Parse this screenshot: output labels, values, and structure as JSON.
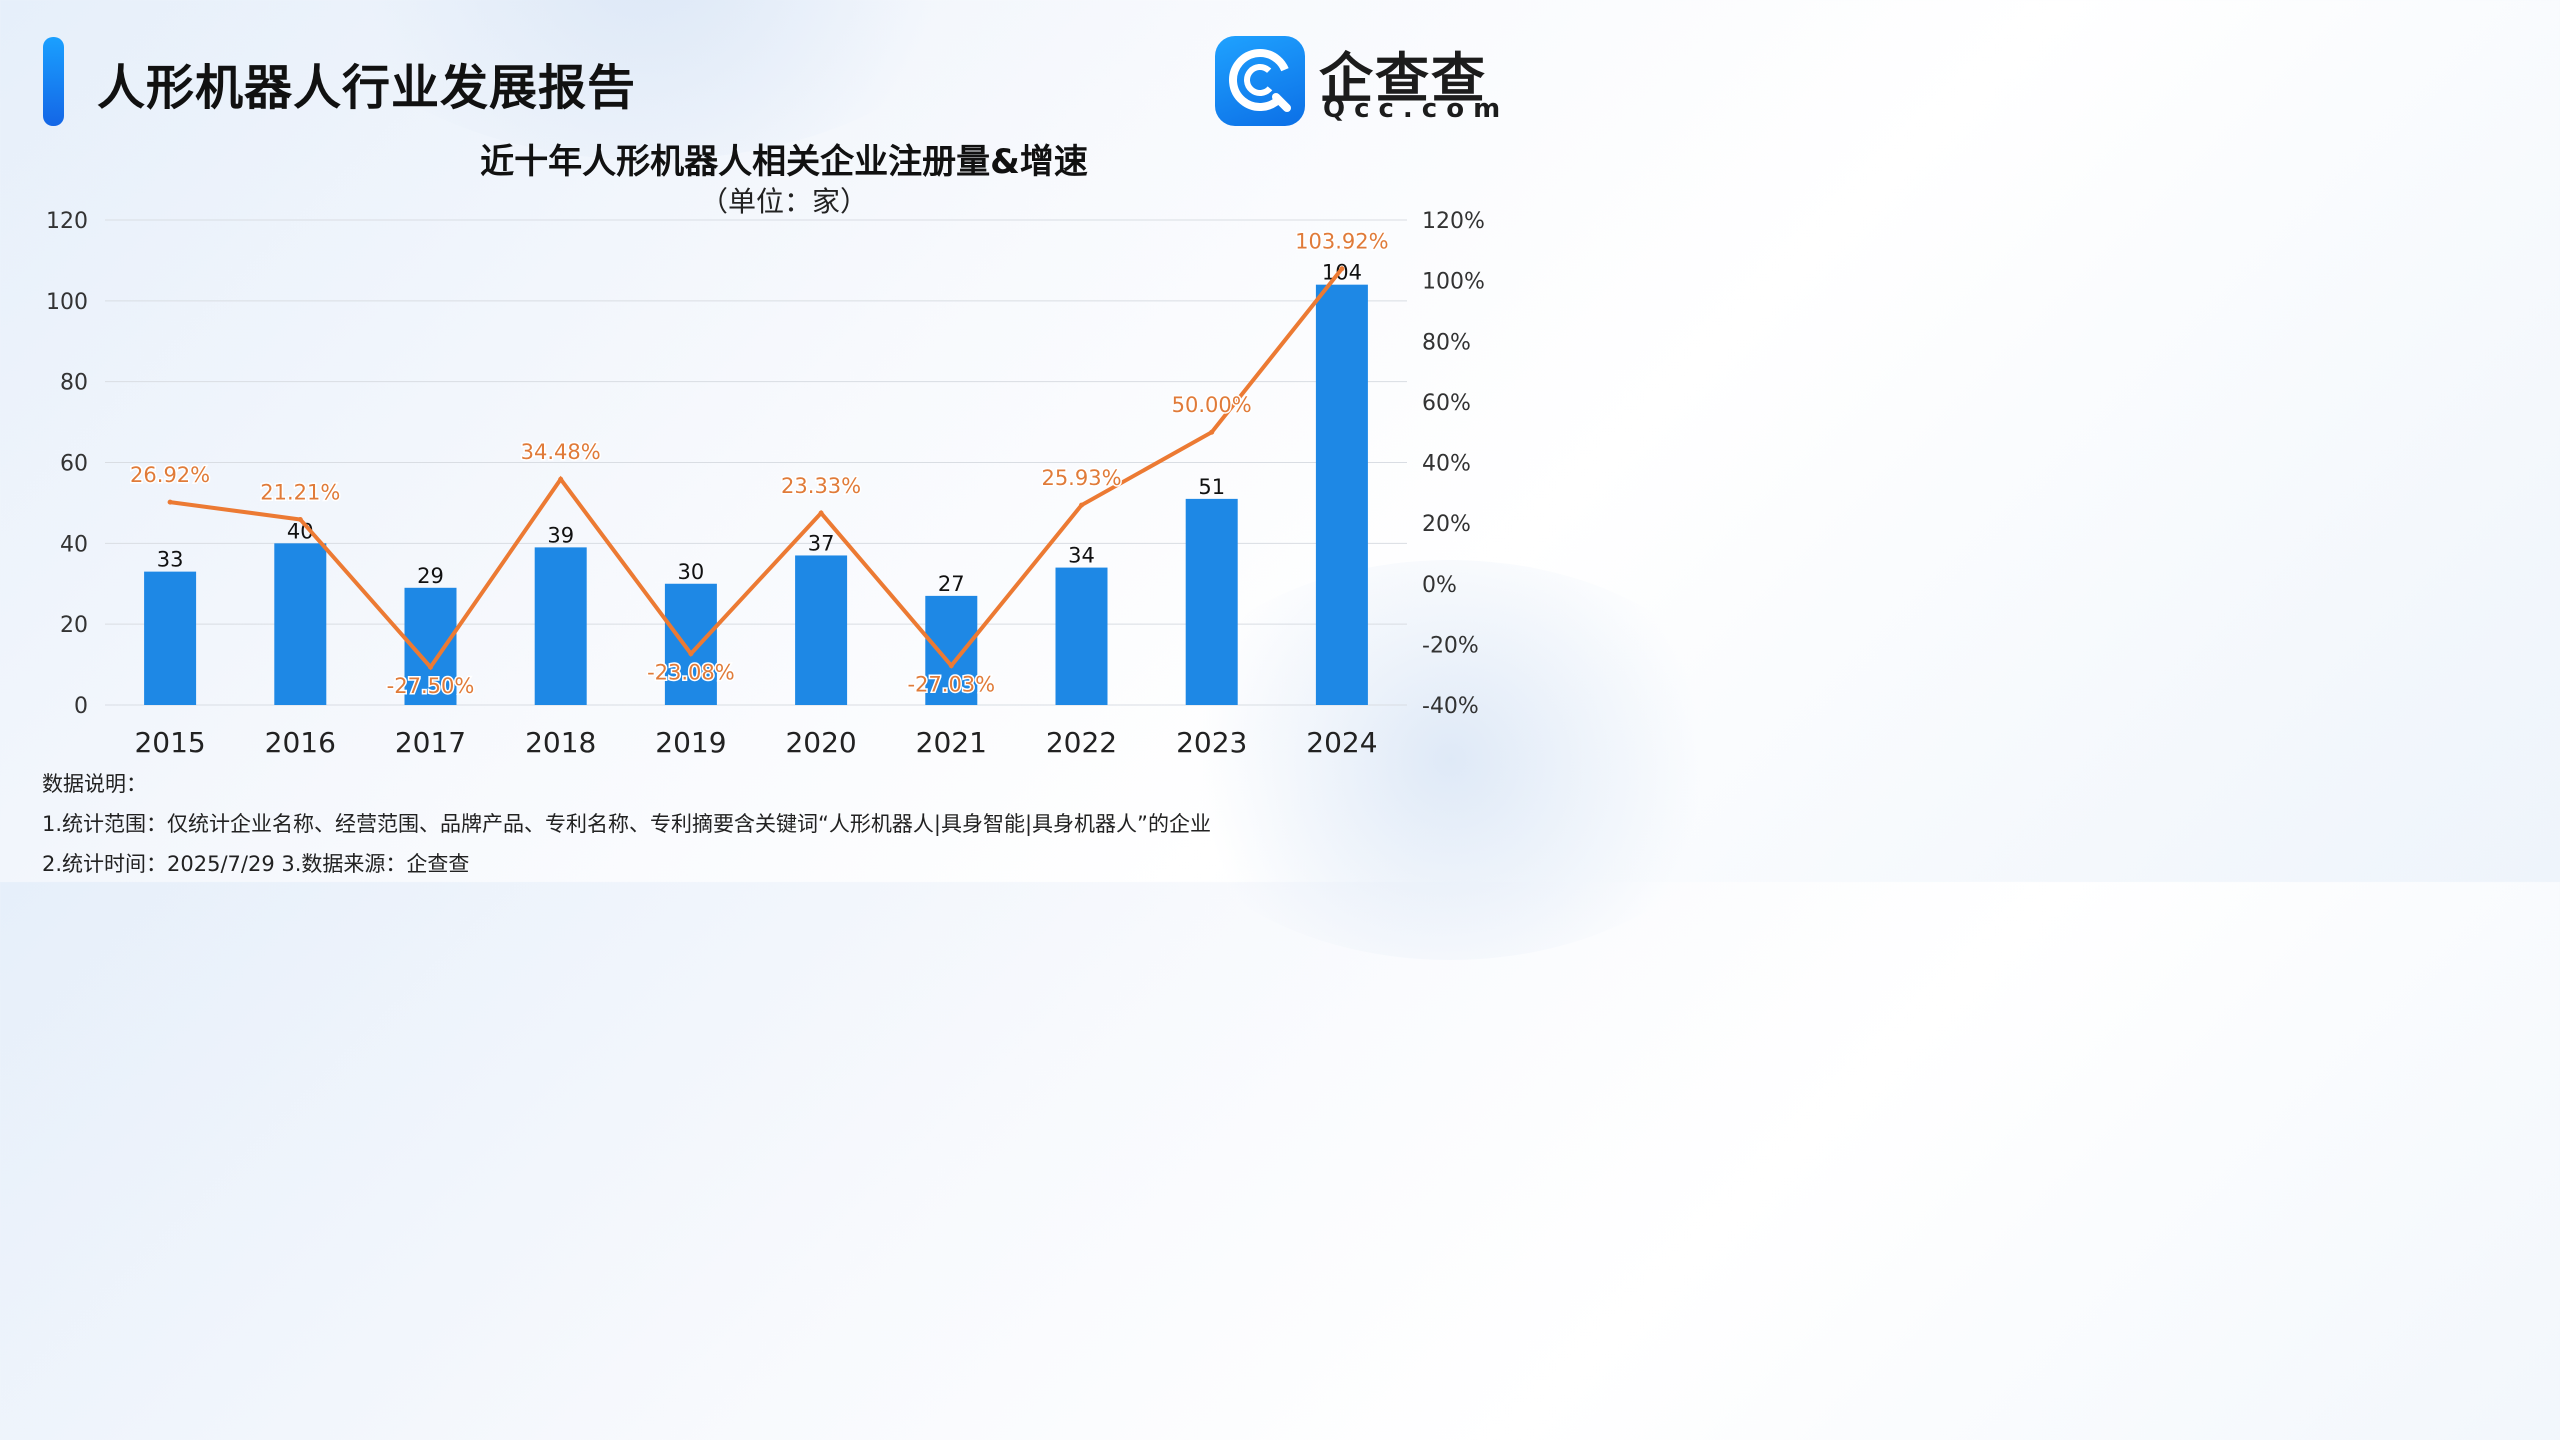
{
  "header": {
    "title": "人形机器人行业发展报告",
    "logo_cn": "企查查",
    "logo_en": "Qcc.com",
    "logo_icon": "qcc-logo-icon"
  },
  "colors": {
    "bar": "#1e88e5",
    "line": "#ec7a33",
    "line_label": "#e07b39",
    "accent": "#1677ff",
    "grid": "#d9dde3"
  },
  "chart_data": {
    "type": "bar",
    "title": "近十年人形机器人相关企业注册量&增速",
    "subtitle": "（单位：家）",
    "categories": [
      "2015",
      "2016",
      "2017",
      "2018",
      "2019",
      "2020",
      "2021",
      "2022",
      "2023",
      "2024"
    ],
    "series": [
      {
        "type": "bar",
        "axis": "left",
        "values": [
          33,
          40,
          29,
          39,
          30,
          37,
          27,
          34,
          51,
          104
        ]
      },
      {
        "type": "line",
        "axis": "right",
        "values": [
          26.92,
          21.21,
          -27.5,
          34.48,
          -23.08,
          23.33,
          -27.03,
          25.93,
          50.0,
          103.92
        ],
        "labels": [
          "26.92%",
          "21.21%",
          "-27.50%",
          "34.48%",
          "-23.08%",
          "23.33%",
          "-27.03%",
          "25.93%",
          "50.00%",
          "103.92%"
        ]
      }
    ],
    "ylim_left": [
      0,
      120
    ],
    "yticks_left": [
      "0",
      "20",
      "40",
      "60",
      "80",
      "100",
      "120"
    ],
    "ylim_right": [
      -40,
      120
    ],
    "yticks_right": [
      "-40%",
      "-20%",
      "0%",
      "20%",
      "40%",
      "60%",
      "80%",
      "100%",
      "120%"
    ],
    "grid": true,
    "legend": "none"
  },
  "notes": {
    "heading": "数据说明：",
    "line1": "1.统计范围：仅统计企业名称、经营范围、品牌产品、专利名称、专利摘要含关键词“人形机器人|具身智能|具身机器人”的企业",
    "line2": " 2.统计时间：2025/7/29  3.数据来源：企查查"
  }
}
